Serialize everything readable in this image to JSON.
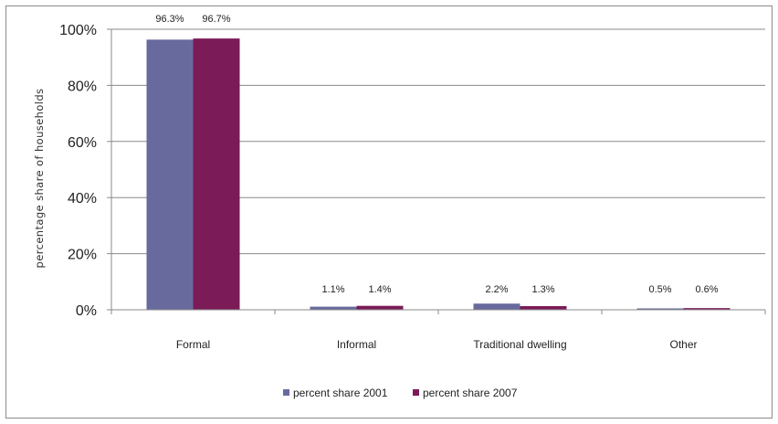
{
  "chart_data": {
    "type": "bar",
    "title": "",
    "xlabel": "",
    "ylabel": "percentage share of households",
    "ylim": [
      0,
      100
    ],
    "yticks": [
      "0%",
      "20%",
      "40%",
      "60%",
      "80%",
      "100%"
    ],
    "grid": true,
    "legend_position": "bottom",
    "categories": [
      "Formal",
      "Informal",
      "Traditional dwelling",
      "Other"
    ],
    "series": [
      {
        "name": "percent share 2001",
        "color": "#686a9e",
        "values": [
          96.3,
          1.1,
          2.2,
          0.5
        ],
        "labels": [
          "96.3%",
          "1.1%",
          "2.2%",
          "0.5%"
        ]
      },
      {
        "name": "percent share 2007",
        "color": "#7b1b57",
        "values": [
          96.7,
          1.4,
          1.3,
          0.6
        ],
        "labels": [
          "96.7%",
          "1.4%",
          "1.3%",
          "0.6%"
        ]
      }
    ]
  }
}
